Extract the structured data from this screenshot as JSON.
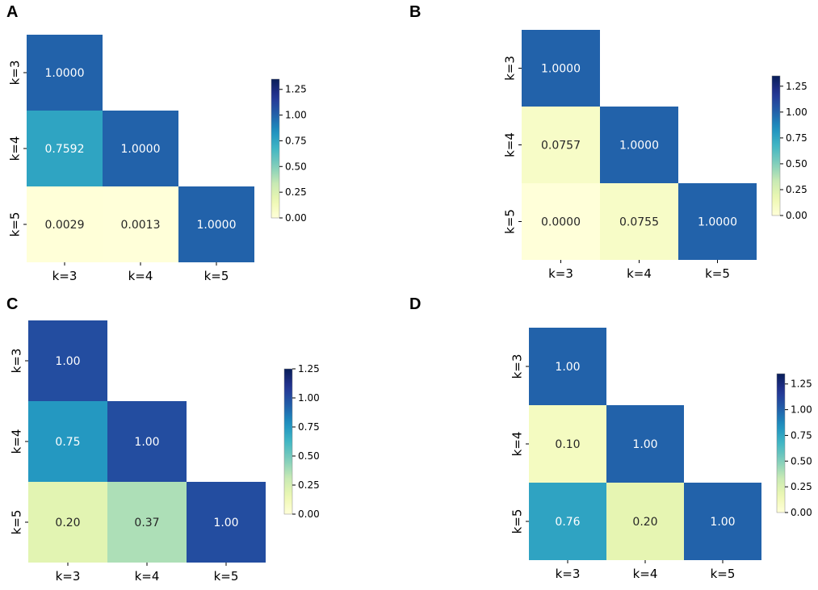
{
  "figure": {
    "colormap_name": "YlGnBu",
    "colormap_stops": [
      "#ffffd9",
      "#edf8b1",
      "#c7e9b4",
      "#7fcdbb",
      "#41b6c4",
      "#1d91c0",
      "#225ea8",
      "#253494",
      "#081d58"
    ],
    "light_text_color": "#ffffff",
    "dark_text_color": "#262626"
  },
  "chart_data": [
    {
      "panel": "A",
      "type": "heatmap",
      "row_labels": [
        "k=3",
        "k=4",
        "k=5"
      ],
      "col_labels": [
        "k=3",
        "k=4",
        "k=5"
      ],
      "cells": [
        {
          "row": 0,
          "col": 0,
          "value": 1.0,
          "label": "1.0000"
        },
        {
          "row": 1,
          "col": 0,
          "value": 0.7592,
          "label": "0.7592"
        },
        {
          "row": 1,
          "col": 1,
          "value": 1.0,
          "label": "1.0000"
        },
        {
          "row": 2,
          "col": 0,
          "value": 0.0029,
          "label": "0.0029"
        },
        {
          "row": 2,
          "col": 1,
          "value": 0.0013,
          "label": "0.0013"
        },
        {
          "row": 2,
          "col": 2,
          "value": 1.0,
          "label": "1.0000"
        }
      ],
      "vmin": 0,
      "vmax": 1.35,
      "colorbar_ticks": [
        0,
        0.25,
        0.5,
        0.75,
        1.0,
        1.25
      ],
      "colorbar_tick_labels": [
        "0.00",
        "0.25",
        "0.50",
        "0.75",
        "1.00",
        "1.25"
      ]
    },
    {
      "panel": "B",
      "type": "heatmap",
      "row_labels": [
        "k=3",
        "k=4",
        "k=5"
      ],
      "col_labels": [
        "k=3",
        "k=4",
        "k=5"
      ],
      "cells": [
        {
          "row": 0,
          "col": 0,
          "value": 1.0,
          "label": "1.0000"
        },
        {
          "row": 1,
          "col": 0,
          "value": 0.0757,
          "label": "0.0757"
        },
        {
          "row": 1,
          "col": 1,
          "value": 1.0,
          "label": "1.0000"
        },
        {
          "row": 2,
          "col": 0,
          "value": 0.0,
          "label": "0.0000"
        },
        {
          "row": 2,
          "col": 1,
          "value": 0.0755,
          "label": "0.0755"
        },
        {
          "row": 2,
          "col": 2,
          "value": 1.0,
          "label": "1.0000"
        }
      ],
      "vmin": 0,
      "vmax": 1.35,
      "colorbar_ticks": [
        0,
        0.25,
        0.5,
        0.75,
        1.0,
        1.25
      ],
      "colorbar_tick_labels": [
        "0.00",
        "0.25",
        "0.50",
        "0.75",
        "1.00",
        "1.25"
      ]
    },
    {
      "panel": "C",
      "type": "heatmap",
      "row_labels": [
        "k=3",
        "k=4",
        "k=5"
      ],
      "col_labels": [
        "k=3",
        "k=4",
        "k=5"
      ],
      "cells": [
        {
          "row": 0,
          "col": 0,
          "value": 1.0,
          "label": "1.00"
        },
        {
          "row": 1,
          "col": 0,
          "value": 0.75,
          "label": "0.75"
        },
        {
          "row": 1,
          "col": 1,
          "value": 1.0,
          "label": "1.00"
        },
        {
          "row": 2,
          "col": 0,
          "value": 0.2,
          "label": "0.20"
        },
        {
          "row": 2,
          "col": 1,
          "value": 0.37,
          "label": "0.37"
        },
        {
          "row": 2,
          "col": 2,
          "value": 1.0,
          "label": "1.00"
        }
      ],
      "vmin": 0,
      "vmax": 1.25,
      "colorbar_ticks": [
        0,
        0.25,
        0.5,
        0.75,
        1.0,
        1.25
      ],
      "colorbar_tick_labels": [
        "0.00",
        "0.25",
        "0.50",
        "0.75",
        "1.00",
        "1.25"
      ]
    },
    {
      "panel": "D",
      "type": "heatmap",
      "row_labels": [
        "k=3",
        "k=4",
        "k=5"
      ],
      "col_labels": [
        "k=3",
        "k=4",
        "k=5"
      ],
      "cells": [
        {
          "row": 0,
          "col": 0,
          "value": 1.0,
          "label": "1.00"
        },
        {
          "row": 1,
          "col": 0,
          "value": 0.1,
          "label": "0.10"
        },
        {
          "row": 1,
          "col": 1,
          "value": 1.0,
          "label": "1.00"
        },
        {
          "row": 2,
          "col": 0,
          "value": 0.76,
          "label": "0.76"
        },
        {
          "row": 2,
          "col": 1,
          "value": 0.2,
          "label": "0.20"
        },
        {
          "row": 2,
          "col": 2,
          "value": 1.0,
          "label": "1.00"
        }
      ],
      "vmin": 0,
      "vmax": 1.35,
      "colorbar_ticks": [
        0,
        0.25,
        0.5,
        0.75,
        1.0,
        1.25
      ],
      "colorbar_tick_labels": [
        "0.00",
        "0.25",
        "0.50",
        "0.75",
        "1.00",
        "1.25"
      ]
    }
  ]
}
